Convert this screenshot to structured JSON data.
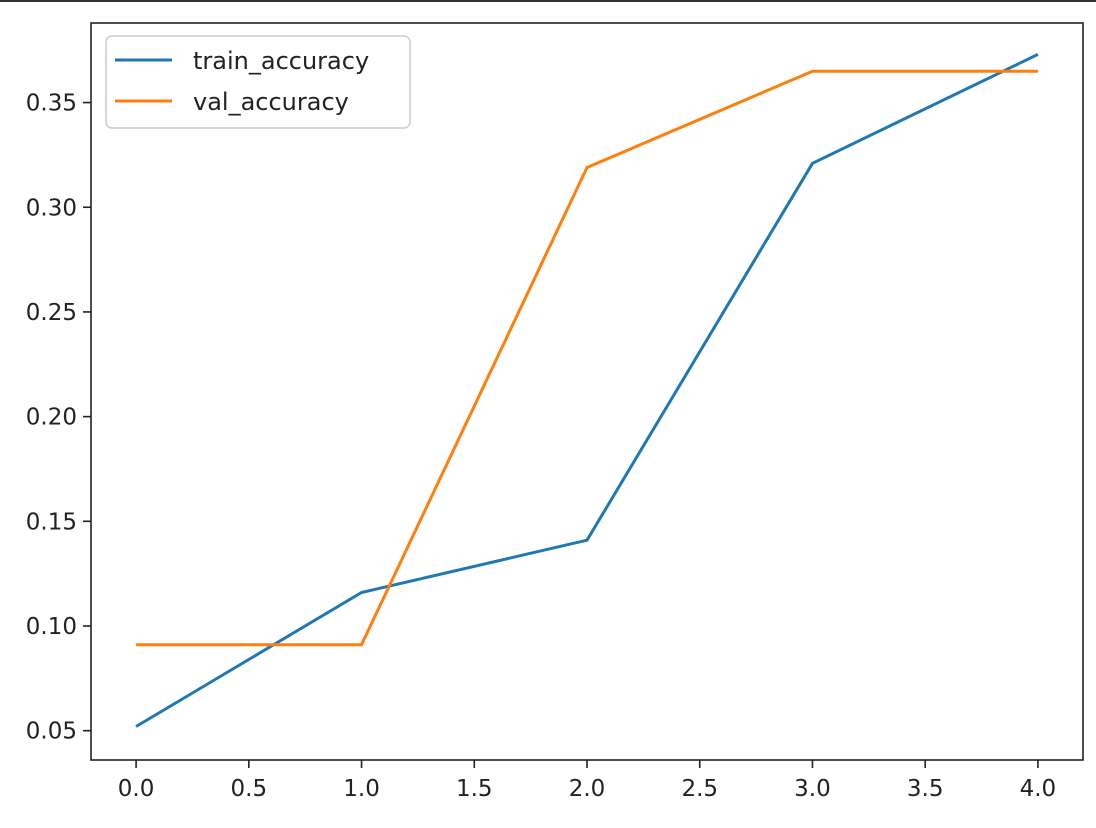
{
  "chart_data": {
    "type": "line",
    "title": "",
    "xlabel": "",
    "ylabel": "",
    "xlim": [
      -0.2,
      4.2
    ],
    "ylim": [
      0.036,
      0.388
    ],
    "grid": false,
    "legend_position": "upper-left",
    "x_ticks": [
      0.0,
      0.5,
      1.0,
      1.5,
      2.0,
      2.5,
      3.0,
      3.5,
      4.0
    ],
    "x_tick_labels": [
      "0.0",
      "0.5",
      "1.0",
      "1.5",
      "2.0",
      "2.5",
      "3.0",
      "3.5",
      "4.0"
    ],
    "y_ticks": [
      0.05,
      0.1,
      0.15,
      0.2,
      0.25,
      0.3,
      0.35
    ],
    "y_tick_labels": [
      "0.05",
      "0.10",
      "0.15",
      "0.20",
      "0.25",
      "0.30",
      "0.35"
    ],
    "x": [
      0,
      1,
      2,
      3,
      4
    ],
    "series": [
      {
        "name": "train_accuracy",
        "color": "#1f77b4",
        "values": [
          0.052,
          0.116,
          0.141,
          0.321,
          0.373
        ]
      },
      {
        "name": "val_accuracy",
        "color": "#ff7f0e",
        "values": [
          0.091,
          0.091,
          0.319,
          0.365,
          0.365
        ]
      }
    ]
  }
}
